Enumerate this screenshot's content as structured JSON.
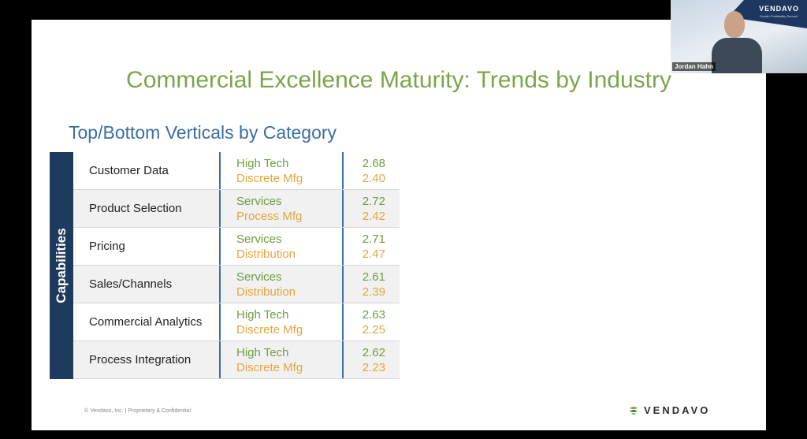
{
  "slide": {
    "title": "Commercial Excellence Maturity: Trends by Industry",
    "subtitle": "Top/Bottom Verticals by Category",
    "sidebar_label": "Capabilities",
    "rows": [
      {
        "capability": "Customer Data",
        "top_industry": "High Tech",
        "bottom_industry": "Discrete Mfg",
        "top_value": "2.68",
        "bottom_value": "2.40"
      },
      {
        "capability": "Product Selection",
        "top_industry": "Services",
        "bottom_industry": "Process Mfg",
        "top_value": "2.72",
        "bottom_value": "2.42"
      },
      {
        "capability": "Pricing",
        "top_industry": "Services",
        "bottom_industry": "Distribution",
        "top_value": "2.71",
        "bottom_value": "2.47"
      },
      {
        "capability": "Sales/Channels",
        "top_industry": "Services",
        "bottom_industry": "Distribution",
        "top_value": "2.61",
        "bottom_value": "2.39"
      },
      {
        "capability": "Commercial Analytics",
        "top_industry": "High Tech",
        "bottom_industry": "Discrete Mfg",
        "top_value": "2.63",
        "bottom_value": "2.25"
      },
      {
        "capability": "Process Integration",
        "top_industry": "High Tech",
        "bottom_industry": "Discrete Mfg",
        "top_value": "2.62",
        "bottom_value": "2.23"
      }
    ],
    "footer_note": "© Vendavo, Inc.   |   Proprietary & Confidential",
    "logo_text": "VENDAVO"
  },
  "video": {
    "participant_name": "Jordan Hahn",
    "logo_text": "VENDAVO",
    "logo_sub": "Growth Profitability Summit"
  },
  "colors": {
    "title": "#7aa64a",
    "subtitle": "#3a6ea5",
    "sidebar": "#1e3a5f",
    "top": "#6f9e3f",
    "bottom": "#e3a63c"
  }
}
